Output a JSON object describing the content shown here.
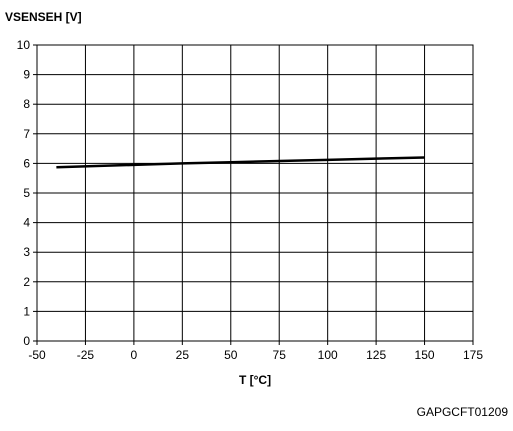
{
  "chart_data": {
    "type": "line",
    "title": "",
    "ylabel": "VSENSEH [V]",
    "xlabel": "T [°C]",
    "xlim": [
      -50,
      175
    ],
    "ylim": [
      0,
      10
    ],
    "x_ticks": [
      -50,
      -25,
      0,
      25,
      50,
      75,
      100,
      125,
      150,
      175
    ],
    "y_ticks": [
      0,
      1,
      2,
      3,
      4,
      5,
      6,
      7,
      8,
      9,
      10
    ],
    "grid": true,
    "legend": "none",
    "colors": {
      "line": "#000000",
      "grid": "#000000",
      "axis": "#000000"
    },
    "series": [
      {
        "x": [
          -40,
          0,
          25,
          50,
          75,
          100,
          125,
          150
        ],
        "y": [
          5.87,
          5.95,
          6.0,
          6.04,
          6.08,
          6.12,
          6.16,
          6.2
        ]
      }
    ]
  },
  "figure_code": "GAPGCFT01209"
}
